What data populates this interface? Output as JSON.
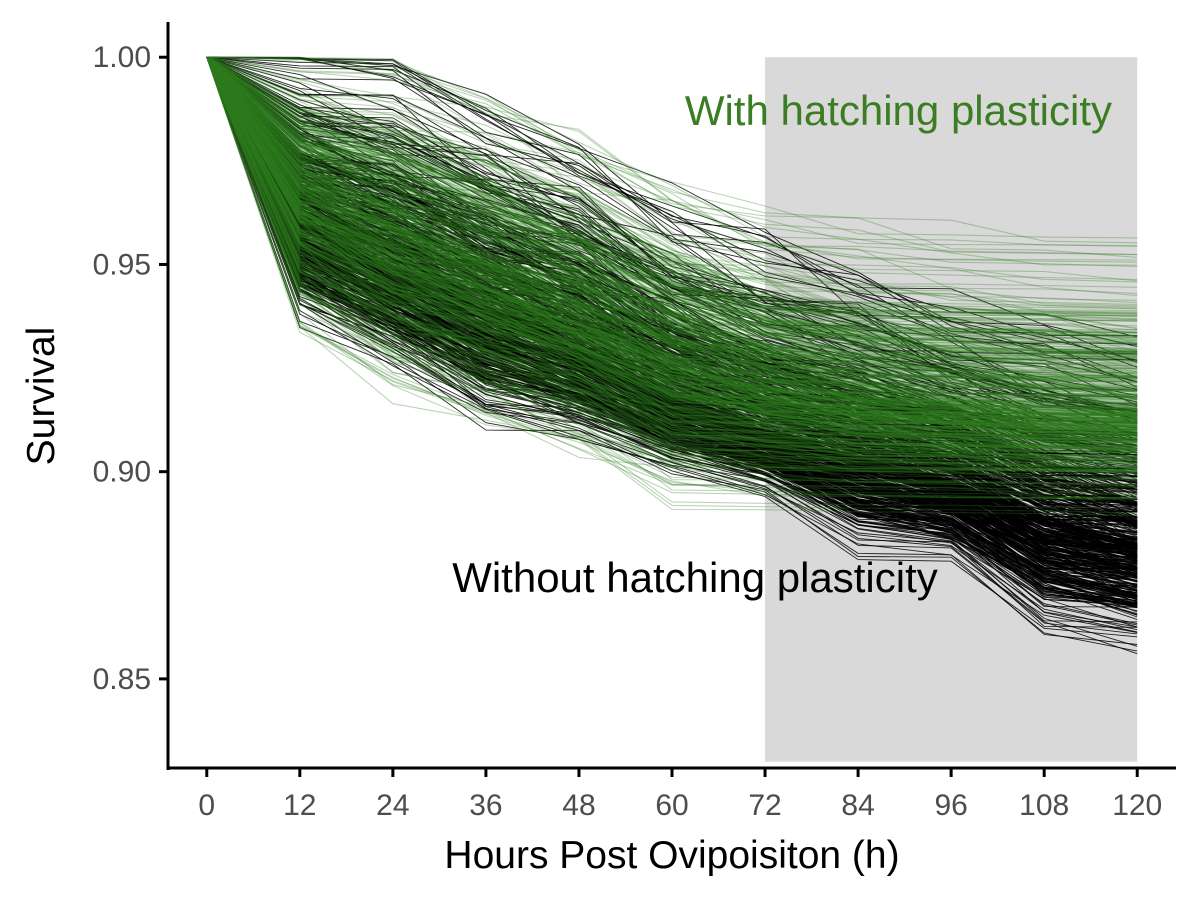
{
  "chart_data": {
    "type": "line",
    "title": "",
    "xlabel": "Hours Post Ovipoisiton (h)",
    "ylabel": "Survival",
    "xlim": [
      -5,
      125
    ],
    "ylim": [
      0.8285,
      1.0085
    ],
    "x_ticks": [
      0,
      12,
      24,
      36,
      48,
      60,
      72,
      84,
      96,
      108,
      120
    ],
    "x_tick_labels": [
      "0",
      "12",
      "24",
      "36",
      "48",
      "60",
      "72",
      "84",
      "96",
      "108",
      "120"
    ],
    "y_ticks": [
      0.85,
      0.9,
      0.95,
      1.0
    ],
    "y_tick_labels": [
      "0.85",
      "0.90",
      "0.95",
      "1.00"
    ],
    "grid": false,
    "legend": "none",
    "shaded_region": {
      "x": [
        72,
        120
      ],
      "y": [
        0.83,
        1.0
      ],
      "color": "#d9d9d9"
    },
    "x": [
      0,
      12,
      24,
      36,
      48,
      60,
      72,
      84,
      96,
      108,
      120
    ],
    "series": [
      {
        "label": "Without hatching plasticity",
        "color": "#000000",
        "n_runs": 500,
        "upper_envelope": [
          1.0,
          1.0,
          0.996,
          0.985,
          0.976,
          0.962,
          0.952,
          0.945,
          0.938,
          0.933,
          0.93
        ],
        "lower_envelope": [
          1.0,
          0.938,
          0.926,
          0.912,
          0.908,
          0.9,
          0.895,
          0.882,
          0.88,
          0.862,
          0.858
        ],
        "central_band": [
          1.0,
          0.96,
          0.95,
          0.94,
          0.93,
          0.918,
          0.91,
          0.904,
          0.898,
          0.888,
          0.883
        ]
      },
      {
        "label": "With hatching plasticity",
        "color": "#2e7d1f",
        "n_runs": 500,
        "upper_envelope": [
          1.0,
          1.0,
          0.998,
          0.99,
          0.98,
          0.968,
          0.96,
          0.958,
          0.958,
          0.958,
          0.958
        ],
        "lower_envelope": [
          1.0,
          0.935,
          0.92,
          0.912,
          0.905,
          0.893,
          0.895,
          0.895,
          0.895,
          0.895,
          0.898
        ],
        "central_band": [
          1.0,
          0.968,
          0.957,
          0.947,
          0.938,
          0.928,
          0.922,
          0.918,
          0.916,
          0.915,
          0.915
        ]
      }
    ],
    "annotations": [
      {
        "text": "With hatching plasticity",
        "color": "#3a7d22"
      },
      {
        "text": "Without hatching plasticity",
        "color": "#000000"
      }
    ]
  }
}
